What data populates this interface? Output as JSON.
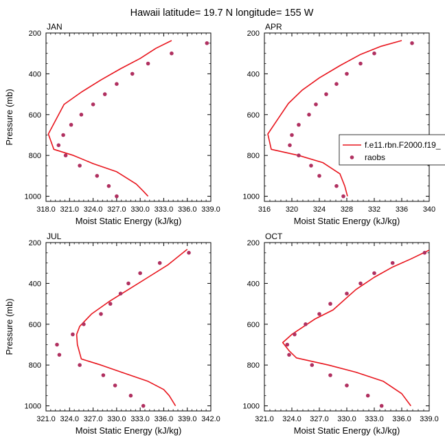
{
  "title": "Hawaii  latitude= 19.7 N longitude= 155 W",
  "colors": {
    "model_line": "#e8141c",
    "obs_marker": "#b03060"
  },
  "legend": {
    "placement": "right of APR panel",
    "entries": [
      {
        "label": "f.e11.rbn.F2000.f19_",
        "style": "line"
      },
      {
        "label": "raobs",
        "style": "marker"
      }
    ]
  },
  "chart_data": [
    {
      "type": "line",
      "title": "JAN",
      "xlabel": "Moist Static Energy (kJ/kg)",
      "ylabel": "Pressure (mb)",
      "xlim": [
        318.0,
        339.0
      ],
      "ylim": [
        1025,
        200
      ],
      "y_inverted": true,
      "grid": false,
      "xticks": [
        318.0,
        321.0,
        324.0,
        327.0,
        330.0,
        333.0,
        336.0,
        339.0
      ],
      "xtick_labels": [
        "318.0",
        "321.0",
        "324.0",
        "327.0",
        "330.0",
        "333.0",
        "336.0",
        "339.0"
      ],
      "yticks": [
        200,
        400,
        600,
        800,
        1000
      ],
      "ytick_labels": [
        "200",
        "400",
        "600",
        "800",
        "1000"
      ],
      "series": [
        {
          "name": "f.e11.rbn.F2000.f19_",
          "style": "line",
          "x": [
            334.0,
            332.0,
            330.0,
            327.5,
            325.0,
            322.5,
            320.3,
            318.3,
            319.0,
            321.5,
            324.0,
            327.0,
            329.5,
            330.4,
            331.0
          ],
          "y": [
            237,
            275,
            325,
            375,
            430,
            490,
            550,
            695,
            770,
            800,
            840,
            880,
            940,
            975,
            1000
          ]
        },
        {
          "name": "raobs",
          "style": "markers",
          "x": [
            338.5,
            334.0,
            331.0,
            329.0,
            327.0,
            325.5,
            324.0,
            322.5,
            321.2,
            320.2,
            319.6,
            320.5,
            322.3,
            324.5,
            326.0,
            327.0
          ],
          "y": [
            250,
            300,
            350,
            400,
            450,
            500,
            550,
            600,
            650,
            700,
            750,
            800,
            850,
            900,
            950,
            1000
          ]
        }
      ]
    },
    {
      "type": "line",
      "title": "APR",
      "xlabel": "Moist Static Energy (kJ/kg)",
      "ylabel": "",
      "xlim": [
        316,
        340
      ],
      "ylim": [
        1025,
        200
      ],
      "y_inverted": true,
      "grid": false,
      "xticks": [
        316,
        320,
        324,
        328,
        332,
        336,
        340
      ],
      "xtick_labels": [
        "316",
        "320",
        "324",
        "328",
        "332",
        "336",
        "340"
      ],
      "yticks": [
        200,
        400,
        600,
        800,
        1000
      ],
      "ytick_labels": [
        "200",
        "400",
        "600",
        "800",
        "1000"
      ],
      "series": [
        {
          "name": "f.e11.rbn.F2000.f19_",
          "style": "line",
          "x": [
            336.0,
            333.0,
            330.0,
            327.0,
            324.0,
            321.5,
            319.5,
            318.0,
            316.5,
            317.0,
            321.0,
            324.5,
            327.0,
            327.7,
            328.1
          ],
          "y": [
            237,
            265,
            305,
            360,
            420,
            480,
            545,
            620,
            695,
            770,
            800,
            835,
            890,
            950,
            1000
          ]
        },
        {
          "name": "raobs",
          "style": "markers",
          "x": [
            337.5,
            332.0,
            330.0,
            328.0,
            326.5,
            325.0,
            323.5,
            322.5,
            321.0,
            320.0,
            319.7,
            321.0,
            322.8,
            324.0,
            326.5,
            327.5
          ],
          "y": [
            250,
            300,
            350,
            400,
            450,
            500,
            550,
            600,
            650,
            700,
            750,
            800,
            850,
            900,
            950,
            1000
          ]
        }
      ]
    },
    {
      "type": "line",
      "title": "JUL",
      "xlabel": "Moist Static Energy (kJ/kg)",
      "ylabel": "Pressure (mb)",
      "xlim": [
        321.0,
        342.0
      ],
      "ylim": [
        1025,
        200
      ],
      "y_inverted": true,
      "grid": false,
      "xticks": [
        321.0,
        324.0,
        327.0,
        330.0,
        333.0,
        336.0,
        339.0,
        342.0
      ],
      "xtick_labels": [
        "321.0",
        "324.0",
        "327.0",
        "330.0",
        "333.0",
        "336.0",
        "339.0",
        "342.0"
      ],
      "yticks": [
        200,
        400,
        600,
        800,
        1000
      ],
      "ytick_labels": [
        "200",
        "400",
        "600",
        "800",
        "1000"
      ],
      "series": [
        {
          "name": "f.e11.rbn.F2000.f19_",
          "style": "line",
          "x": [
            339.0,
            336.5,
            334.0,
            331.5,
            329.0,
            326.8,
            325.3,
            324.9,
            325.0,
            325.5,
            328.0,
            331.0,
            334.0,
            336.0,
            336.7,
            337.5
          ],
          "y": [
            233,
            310,
            370,
            430,
            490,
            550,
            610,
            650,
            700,
            770,
            800,
            840,
            880,
            920,
            950,
            1000
          ]
        },
        {
          "name": "raobs",
          "style": "markers",
          "x": [
            339.2,
            335.5,
            333.0,
            331.5,
            330.5,
            329.2,
            328.0,
            325.8,
            324.4,
            322.4,
            322.7,
            325.3,
            328.3,
            329.8,
            331.8,
            333.4
          ],
          "y": [
            250,
            300,
            350,
            400,
            450,
            500,
            550,
            600,
            650,
            700,
            750,
            800,
            850,
            900,
            950,
            1000
          ]
        }
      ]
    },
    {
      "type": "line",
      "title": "OCT",
      "xlabel": "Moist Static Energy (kJ/kg)",
      "ylabel": "",
      "xlim": [
        321.0,
        339.0
      ],
      "ylim": [
        1025,
        200
      ],
      "y_inverted": true,
      "grid": false,
      "xticks": [
        321.0,
        324.0,
        327.0,
        330.0,
        333.0,
        336.0,
        339.0
      ],
      "xtick_labels": [
        "321.0",
        "324.0",
        "327.0",
        "330.0",
        "333.0",
        "336.0",
        "339.0"
      ],
      "yticks": [
        200,
        400,
        600,
        800,
        1000
      ],
      "ytick_labels": [
        "200",
        "400",
        "600",
        "800",
        "1000"
      ],
      "series": [
        {
          "name": "f.e11.rbn.F2000.f19_",
          "style": "line",
          "x": [
            339.0,
            337.0,
            335.0,
            333.0,
            331.0,
            328.5,
            326.5,
            324.0,
            323.0,
            323.7,
            324.5,
            328.0,
            331.0,
            334.0,
            336.0,
            337.0
          ],
          "y": [
            237,
            280,
            320,
            370,
            430,
            530,
            575,
            650,
            690,
            730,
            765,
            800,
            835,
            880,
            940,
            1000
          ]
        },
        {
          "name": "raobs",
          "style": "markers",
          "x": [
            338.5,
            335.0,
            333.0,
            331.5,
            330.0,
            328.2,
            327.0,
            325.5,
            324.3,
            323.5,
            323.7,
            326.2,
            328.2,
            330.0,
            332.3,
            333.8
          ],
          "y": [
            250,
            300,
            350,
            400,
            450,
            500,
            550,
            600,
            650,
            700,
            750,
            800,
            850,
            900,
            950,
            1000
          ]
        }
      ]
    }
  ]
}
